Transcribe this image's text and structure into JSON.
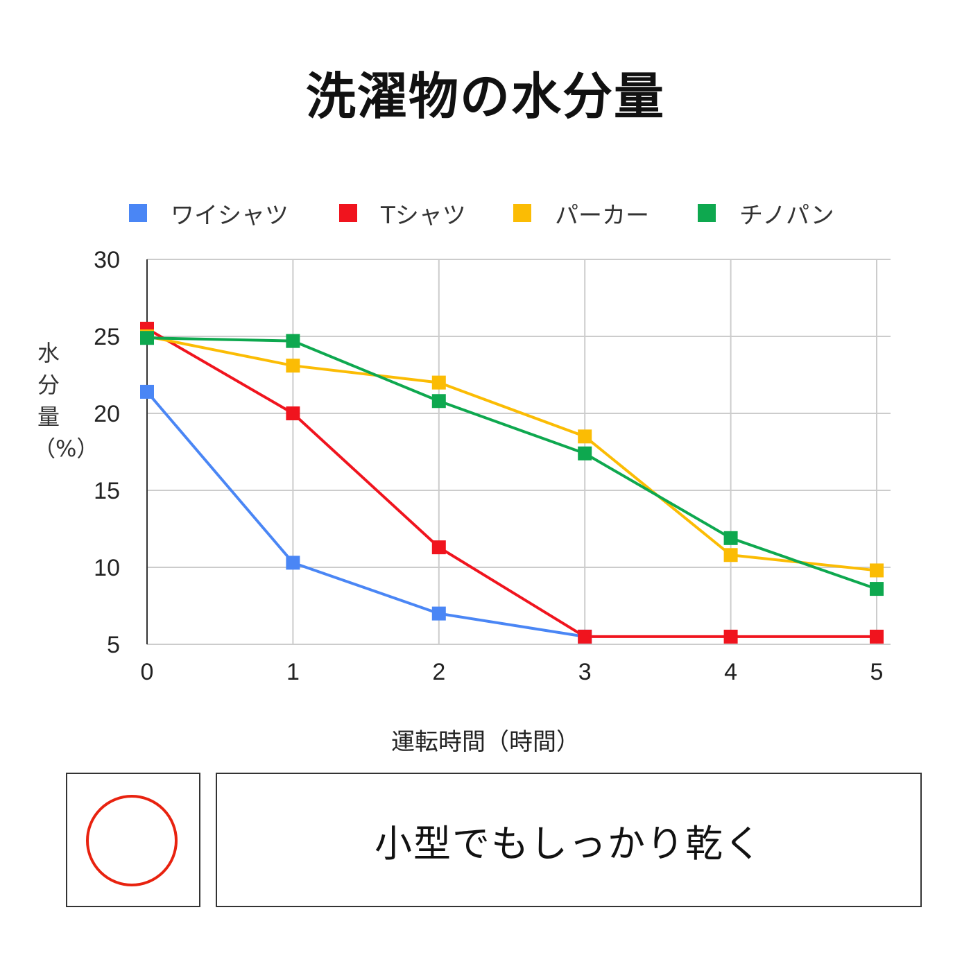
{
  "chart_data": {
    "type": "line",
    "title": "洗濯物の水分量",
    "xlabel": "運転時間（時間）",
    "ylabel": "水分量（%）",
    "x": [
      0,
      1,
      2,
      3,
      4,
      5
    ],
    "ylim": [
      5,
      30
    ],
    "yticks": [
      5,
      10,
      15,
      20,
      25,
      30
    ],
    "grid": true,
    "legend": "top",
    "series": [
      {
        "name": "ワイシャツ",
        "color": "#4a86f5",
        "values": [
          21.4,
          10.3,
          7.0,
          5.5,
          null,
          null
        ]
      },
      {
        "name": "Tシャツ",
        "color": "#f0141e",
        "values": [
          25.5,
          20.0,
          11.3,
          5.5,
          5.5,
          5.5
        ]
      },
      {
        "name": "パーカー",
        "color": "#fbbc04",
        "values": [
          25.0,
          23.1,
          22.0,
          18.5,
          10.8,
          9.8
        ]
      },
      {
        "name": "チノパン",
        "color": "#0ea84f",
        "values": [
          24.9,
          24.7,
          20.8,
          17.4,
          11.9,
          8.6
        ]
      }
    ]
  },
  "feature": {
    "mark_color": "#e8220f",
    "text": "小型でもしっかり乾く"
  }
}
